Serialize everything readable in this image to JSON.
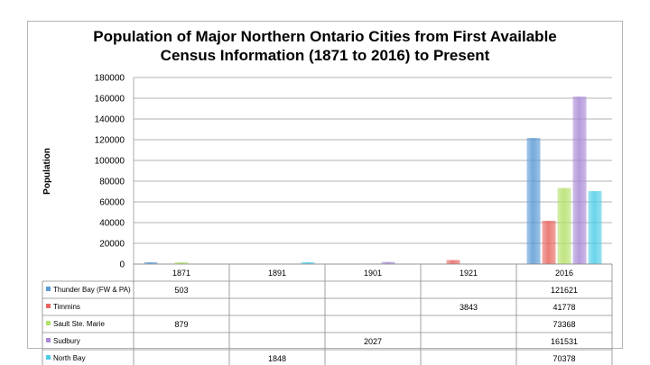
{
  "chart_data": {
    "type": "bar",
    "title_line1": "Population of Major Northern Ontario Cities from First Available",
    "title_line2": "Census Information (1871 to 2016) to Present",
    "xlabel": "",
    "ylabel": "Population",
    "ylim": [
      0,
      180000
    ],
    "yticks": [
      "0",
      "20000",
      "40000",
      "60000",
      "80000",
      "100000",
      "120000",
      "140000",
      "160000",
      "180000"
    ],
    "grid": true,
    "legend": "data-table-left",
    "categories": [
      "1871",
      "1891",
      "1901",
      "1921",
      "2016"
    ],
    "series": [
      {
        "name": "Thunder Bay (FW & PA)",
        "color": "#5b9bd5",
        "values": [
          503,
          null,
          null,
          null,
          121621
        ],
        "labels": [
          "503",
          "",
          "",
          "",
          "121621"
        ]
      },
      {
        "name": "Timmins",
        "color": "#e8665f",
        "values": [
          null,
          null,
          null,
          3843,
          41778
        ],
        "labels": [
          "",
          "",
          "",
          "3843",
          "41778"
        ]
      },
      {
        "name": "Sault Ste. Marie",
        "color": "#b5e06a",
        "values": [
          879,
          null,
          null,
          null,
          73368
        ],
        "labels": [
          "879",
          "",
          "",
          "",
          "73368"
        ]
      },
      {
        "name": "Sudbury",
        "color": "#a98ad6",
        "values": [
          null,
          null,
          2027,
          null,
          161531
        ],
        "labels": [
          "",
          "",
          "2027",
          "",
          "161531"
        ]
      },
      {
        "name": "North Bay",
        "color": "#4fcde8",
        "values": [
          null,
          1848,
          null,
          null,
          70378
        ],
        "labels": [
          "",
          "1848",
          "",
          "",
          "70378"
        ]
      }
    ]
  }
}
